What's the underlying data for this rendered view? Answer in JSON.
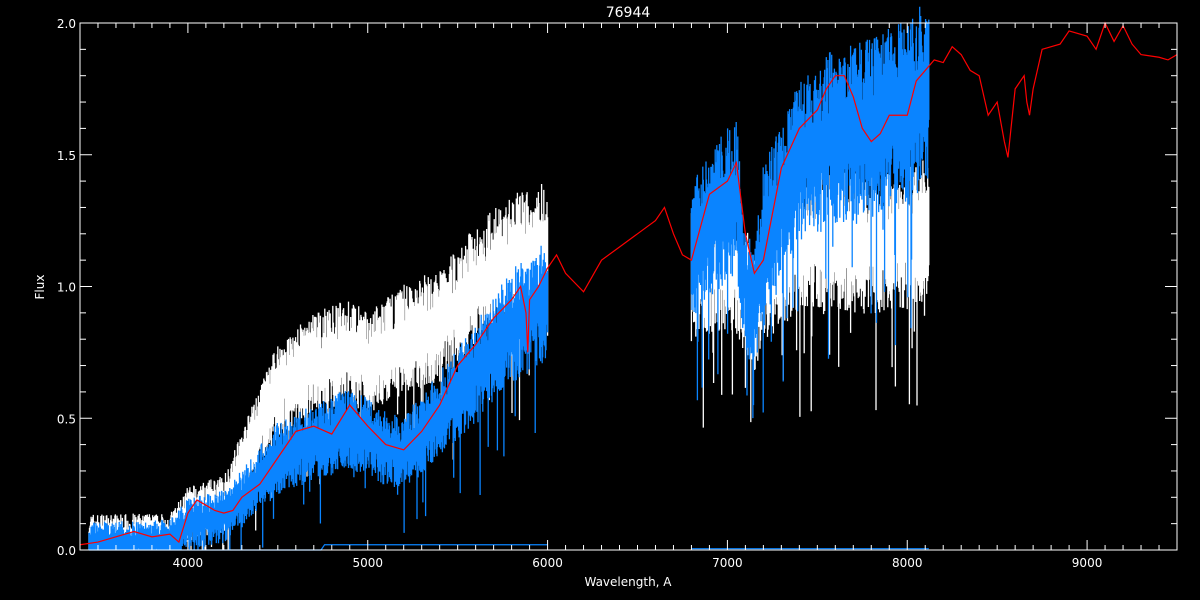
{
  "chart_data": {
    "type": "line",
    "title": "76944",
    "xlabel": "Wavelength, A",
    "ylabel": "Flux",
    "xlim": [
      3400,
      9500
    ],
    "ylim": [
      0,
      2
    ],
    "x_ticks": [
      4000,
      5000,
      6000,
      7000,
      8000,
      9000
    ],
    "x_minor_step": 100,
    "y_ticks": [
      "0.0",
      "0.5",
      "1.0",
      "1.5",
      "2.0"
    ],
    "y_minor_step": 0.1,
    "grid": false,
    "background": "#000000",
    "series": [
      {
        "color": "#ffffff",
        "style": "noisy-spectrum",
        "segments": [
          [
            [
              3450,
              0.07
            ],
            [
              3900,
              0.07
            ],
            [
              4000,
              0.16
            ],
            [
              4200,
              0.2
            ],
            [
              4300,
              0.35
            ],
            [
              4500,
              0.65
            ],
            [
              4700,
              0.75
            ],
            [
              4900,
              0.8
            ],
            [
              5000,
              0.75
            ],
            [
              5200,
              0.85
            ],
            [
              5400,
              0.9
            ],
            [
              5600,
              1.05
            ],
            [
              5800,
              1.15
            ],
            [
              6000,
              1.2
            ]
          ],
          [
            [
              6800,
              1.1
            ],
            [
              7000,
              1.15
            ],
            [
              7100,
              1.05
            ],
            [
              7150,
              0.95
            ],
            [
              7200,
              1.08
            ],
            [
              7400,
              1.22
            ],
            [
              7600,
              1.25
            ],
            [
              7800,
              1.22
            ],
            [
              8000,
              1.25
            ],
            [
              8120,
              1.3
            ]
          ]
        ]
      },
      {
        "color": "#0a84ff",
        "style": "noisy-spectrum",
        "segments": [
          [
            [
              3450,
              0.04
            ],
            [
              3900,
              0.05
            ],
            [
              4000,
              0.12
            ],
            [
              4200,
              0.15
            ],
            [
              4300,
              0.22
            ],
            [
              4500,
              0.38
            ],
            [
              4700,
              0.44
            ],
            [
              4900,
              0.5
            ],
            [
              5100,
              0.42
            ],
            [
              5200,
              0.4
            ],
            [
              5400,
              0.55
            ],
            [
              5600,
              0.72
            ],
            [
              5800,
              0.9
            ],
            [
              6000,
              1.0
            ]
          ],
          [
            [
              6800,
              1.2
            ],
            [
              7000,
              1.38
            ],
            [
              7050,
              1.42
            ],
            [
              7100,
              1.05
            ],
            [
              7150,
              0.95
            ],
            [
              7200,
              1.25
            ],
            [
              7400,
              1.55
            ],
            [
              7600,
              1.65
            ],
            [
              7800,
              1.68
            ],
            [
              8000,
              1.75
            ],
            [
              8120,
              1.82
            ]
          ]
        ]
      },
      {
        "color": "#ff0000",
        "style": "line",
        "segments": [
          [
            [
              3400,
              0.02
            ],
            [
              3500,
              0.03
            ],
            [
              3600,
              0.05
            ],
            [
              3700,
              0.07
            ],
            [
              3800,
              0.05
            ],
            [
              3900,
              0.06
            ],
            [
              3950,
              0.03
            ],
            [
              4000,
              0.14
            ],
            [
              4050,
              0.19
            ],
            [
              4100,
              0.17
            ],
            [
              4150,
              0.15
            ],
            [
              4200,
              0.14
            ],
            [
              4250,
              0.15
            ],
            [
              4300,
              0.2
            ],
            [
              4400,
              0.25
            ],
            [
              4500,
              0.35
            ],
            [
              4600,
              0.45
            ],
            [
              4700,
              0.47
            ],
            [
              4800,
              0.44
            ],
            [
              4900,
              0.55
            ],
            [
              5000,
              0.47
            ],
            [
              5100,
              0.4
            ],
            [
              5200,
              0.38
            ],
            [
              5300,
              0.45
            ],
            [
              5400,
              0.55
            ],
            [
              5500,
              0.7
            ],
            [
              5600,
              0.78
            ],
            [
              5700,
              0.88
            ],
            [
              5800,
              0.95
            ],
            [
              5850,
              1.0
            ],
            [
              5880,
              0.9
            ],
            [
              5890,
              0.75
            ],
            [
              5900,
              0.95
            ],
            [
              5950,
              1.0
            ],
            [
              6000,
              1.07
            ],
            [
              6050,
              1.12
            ],
            [
              6100,
              1.05
            ],
            [
              6200,
              0.98
            ],
            [
              6300,
              1.1
            ],
            [
              6400,
              1.15
            ],
            [
              6500,
              1.2
            ],
            [
              6600,
              1.25
            ],
            [
              6650,
              1.3
            ],
            [
              6700,
              1.2
            ],
            [
              6750,
              1.12
            ],
            [
              6800,
              1.1
            ],
            [
              6900,
              1.35
            ],
            [
              7000,
              1.4
            ],
            [
              7050,
              1.47
            ],
            [
              7100,
              1.2
            ],
            [
              7150,
              1.05
            ],
            [
              7200,
              1.1
            ],
            [
              7300,
              1.45
            ],
            [
              7400,
              1.6
            ],
            [
              7500,
              1.67
            ],
            [
              7550,
              1.75
            ],
            [
              7600,
              1.8
            ],
            [
              7650,
              1.8
            ],
            [
              7700,
              1.72
            ],
            [
              7750,
              1.6
            ],
            [
              7800,
              1.55
            ],
            [
              7850,
              1.58
            ],
            [
              7900,
              1.65
            ],
            [
              8000,
              1.65
            ],
            [
              8050,
              1.78
            ],
            [
              8100,
              1.82
            ],
            [
              8150,
              1.86
            ],
            [
              8200,
              1.85
            ],
            [
              8250,
              1.91
            ],
            [
              8300,
              1.88
            ],
            [
              8350,
              1.82
            ],
            [
              8400,
              1.8
            ],
            [
              8450,
              1.65
            ],
            [
              8500,
              1.7
            ],
            [
              8540,
              1.55
            ],
            [
              8560,
              1.49
            ],
            [
              8580,
              1.62
            ],
            [
              8600,
              1.75
            ],
            [
              8650,
              1.8
            ],
            [
              8665,
              1.7
            ],
            [
              8680,
              1.65
            ],
            [
              8700,
              1.75
            ],
            [
              8750,
              1.9
            ],
            [
              8850,
              1.92
            ],
            [
              8900,
              1.97
            ],
            [
              9000,
              1.95
            ],
            [
              9050,
              1.9
            ],
            [
              9100,
              2.0
            ],
            [
              9150,
              1.93
            ],
            [
              9200,
              1.99
            ],
            [
              9250,
              1.92
            ],
            [
              9300,
              1.88
            ],
            [
              9400,
              1.87
            ],
            [
              9450,
              1.86
            ],
            [
              9500,
              1.88
            ]
          ]
        ]
      },
      {
        "color": "#0a84ff",
        "style": "line",
        "segments": [
          [
            [
              3450,
              0.0
            ],
            [
              4740,
              0.0
            ],
            [
              4760,
              0.02
            ],
            [
              6000,
              0.02
            ]
          ],
          [
            [
              6800,
              0.005
            ],
            [
              8120,
              0.005
            ]
          ]
        ]
      }
    ]
  }
}
